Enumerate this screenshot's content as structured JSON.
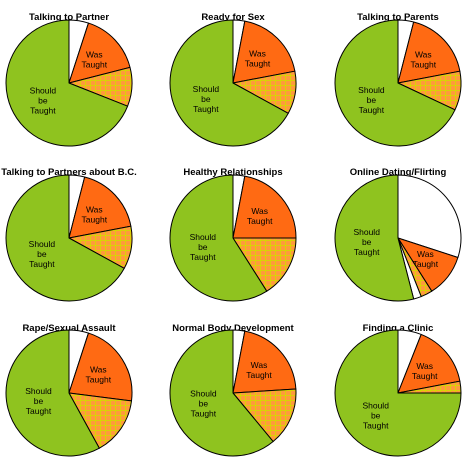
{
  "colors": {
    "was_taught": "#ff6a13",
    "hatched_base": "#ff9a3c",
    "hatch_line": "#d8d800",
    "should_be_taught": "#8fc31f",
    "not_taught": "#ffffff",
    "outline": "#000000"
  },
  "labels": {
    "was_taught": "Was\nTaught",
    "was_taught_short": "Was\nTaught",
    "should_be_taught": "Should\nbe\nTaught"
  },
  "chart_data": [
    {
      "type": "pie",
      "title": "Talking to Partner",
      "slices": [
        {
          "category": "white",
          "value": 5
        },
        {
          "category": "was_taught",
          "value": 16
        },
        {
          "category": "hatched",
          "value": 10
        },
        {
          "category": "should_be_taught",
          "value": 69
        }
      ]
    },
    {
      "type": "pie",
      "title": "Ready for Sex",
      "slices": [
        {
          "category": "white",
          "value": 3
        },
        {
          "category": "was_taught",
          "value": 19
        },
        {
          "category": "hatched",
          "value": 11
        },
        {
          "category": "should_be_taught",
          "value": 67
        }
      ]
    },
    {
      "type": "pie",
      "title": "Talking to Parents",
      "slices": [
        {
          "category": "white",
          "value": 4
        },
        {
          "category": "was_taught",
          "value": 18
        },
        {
          "category": "hatched",
          "value": 10
        },
        {
          "category": "should_be_taught",
          "value": 68
        }
      ]
    },
    {
      "type": "pie",
      "title": "Talking to Partners about B.C.",
      "slices": [
        {
          "category": "white",
          "value": 4
        },
        {
          "category": "was_taught",
          "value": 18
        },
        {
          "category": "hatched",
          "value": 11
        },
        {
          "category": "should_be_taught",
          "value": 67
        }
      ]
    },
    {
      "type": "pie",
      "title": "Healthy Relationships",
      "slices": [
        {
          "category": "white",
          "value": 3
        },
        {
          "category": "was_taught",
          "value": 22
        },
        {
          "category": "hatched",
          "value": 16
        },
        {
          "category": "should_be_taught",
          "value": 59
        }
      ]
    },
    {
      "type": "pie",
      "title": "Online Dating/Flirting",
      "slices": [
        {
          "category": "white",
          "value": 30
        },
        {
          "category": "was_taught",
          "value": 11
        },
        {
          "category": "hatched",
          "value": 3
        },
        {
          "category": "white",
          "value": 2
        },
        {
          "category": "should_be_taught",
          "value": 54
        }
      ]
    },
    {
      "type": "pie",
      "title": "Rape/Sexual Assault",
      "slices": [
        {
          "category": "white",
          "value": 5
        },
        {
          "category": "was_taught",
          "value": 22
        },
        {
          "category": "hatched",
          "value": 15
        },
        {
          "category": "should_be_taught",
          "value": 58
        }
      ]
    },
    {
      "type": "pie",
      "title": "Normal Body Development",
      "slices": [
        {
          "category": "white",
          "value": 3
        },
        {
          "category": "was_taught",
          "value": 21
        },
        {
          "category": "hatched",
          "value": 15
        },
        {
          "category": "should_be_taught",
          "value": 61
        }
      ]
    },
    {
      "type": "pie",
      "title": "Finding a Clinic",
      "slices": [
        {
          "category": "white",
          "value": 6
        },
        {
          "category": "was_taught",
          "value": 16
        },
        {
          "category": "hatched",
          "value": 3
        },
        {
          "category": "should_be_taught",
          "value": 75
        }
      ]
    }
  ]
}
